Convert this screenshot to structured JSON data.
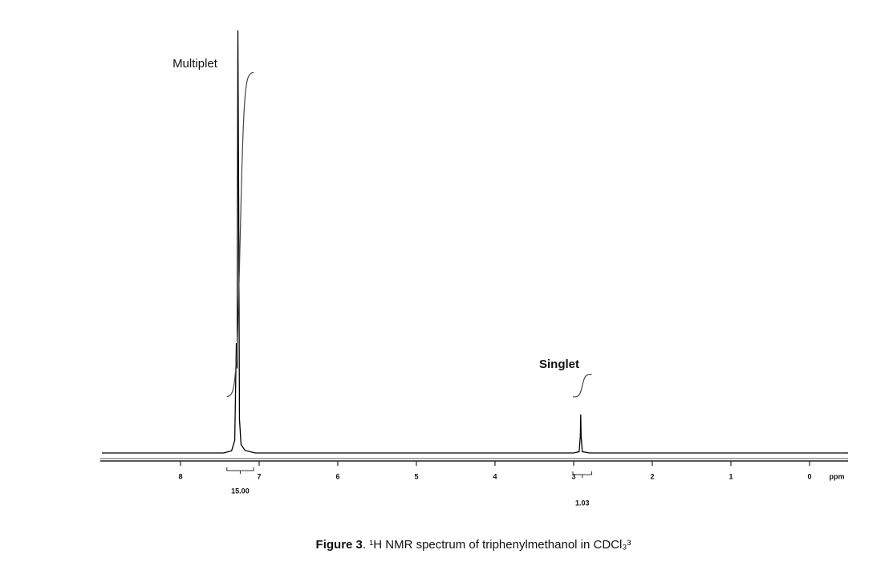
{
  "chart_data": {
    "type": "spectrum",
    "xlabel": "ppm",
    "xlim": [
      9.02,
      -0.49
    ],
    "xticks": [
      8,
      7,
      6,
      5,
      4,
      3,
      2,
      1,
      0
    ],
    "ylim": [
      0,
      100
    ],
    "x": [
      9.0,
      7.45,
      7.35,
      7.31,
      7.29,
      7.28,
      7.27,
      7.26,
      7.25,
      7.23,
      7.18,
      7.05,
      3.0,
      2.93,
      2.915,
      2.91,
      2.905,
      2.89,
      2.8,
      -0.49
    ],
    "values": [
      0,
      0,
      0.5,
      3,
      26,
      20,
      100,
      60,
      8,
      2,
      0.6,
      0,
      0,
      0.3,
      4,
      9.1,
      4,
      0.3,
      0,
      0
    ],
    "color": "#000000",
    "integrals": [
      {
        "range": [
          7.41,
          7.07
        ],
        "value": 15,
        "value_label": "15.00"
      },
      {
        "range": [
          3.01,
          2.77
        ],
        "value": 1.03,
        "value_label": "1.03"
      }
    ],
    "annotations": [
      "Multiplet",
      "Singlet"
    ],
    "caption_label": "Figure 3",
    "caption_text": ". ¹H NMR spectrum of triphenylmethanol in CDCl₃³"
  }
}
